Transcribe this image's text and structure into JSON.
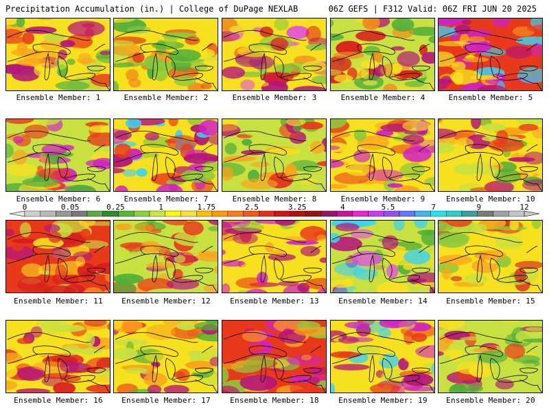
{
  "header": {
    "title_left": "Precipitation Accumulation (in.) | College of DuPage NEXLAB",
    "title_right": "06Z GEFS | F312 Valid: 06Z FRI JUN 20 2025"
  },
  "colorbar": {
    "tick_labels": [
      "0",
      "0.05",
      "0.25",
      "1",
      "1.75",
      "2.5",
      "3.25",
      "4",
      "5.5",
      "7",
      "9",
      "12"
    ],
    "colors": [
      "#d0d0d0",
      "#b8b8b8",
      "#989898",
      "#7a7a7a",
      "#5ea845",
      "#2f8a2b",
      "#55b632",
      "#8fd13b",
      "#c8e640",
      "#fdfd00",
      "#ffe033",
      "#ffc000",
      "#ff9a00",
      "#ff7a1a",
      "#f05a14",
      "#e03218",
      "#d21414",
      "#b40f0f",
      "#961414",
      "#9a1464",
      "#c81496",
      "#e628d2",
      "#c83cf0",
      "#9650f0",
      "#6478f0",
      "#3cb4f0",
      "#1ee6f0",
      "#28d2c8",
      "#3ca0a0",
      "#7a7a7a",
      "#a0a0a0",
      "#c4c4c4"
    ]
  },
  "members": [
    {
      "label": "Ensemble Member: 1",
      "palette": [
        "#f7e11e",
        "#fba21a",
        "#e83a1b",
        "#57b63c",
        "#c4d93a",
        "#b5157a"
      ]
    },
    {
      "label": "Ensemble Member: 2",
      "palette": [
        "#f7e11e",
        "#c8e040",
        "#4fae3a",
        "#f08a1a",
        "#e0401a",
        "#8cc83c"
      ]
    },
    {
      "label": "Ensemble Member: 3",
      "palette": [
        "#f7e11e",
        "#f07a1a",
        "#d81e1e",
        "#b5157a",
        "#e050e0",
        "#8cc83c"
      ]
    },
    {
      "label": "Ensemble Member: 4",
      "palette": [
        "#c8e040",
        "#f7e11e",
        "#4fae3a",
        "#f08a1a",
        "#d81e1e",
        "#b5157a"
      ]
    },
    {
      "label": "Ensemble Member: 5",
      "palette": [
        "#e83a1b",
        "#f7e11e",
        "#b5157a",
        "#d020c8",
        "#3cd2f0",
        "#fba21a"
      ]
    },
    {
      "label": "Ensemble Member: 6",
      "palette": [
        "#c8e040",
        "#f7e11e",
        "#4fae3a",
        "#e83a1b",
        "#d020c8",
        "#fba21a"
      ]
    },
    {
      "label": "Ensemble Member: 7",
      "palette": [
        "#f7e11e",
        "#b5157a",
        "#d020c8",
        "#3cd2f0",
        "#e83a1b",
        "#8cc83c"
      ]
    },
    {
      "label": "Ensemble Member: 8",
      "palette": [
        "#c8e040",
        "#4fae3a",
        "#f7e11e",
        "#e83a1b",
        "#b5157a",
        "#fba21a"
      ]
    },
    {
      "label": "Ensemble Member: 9",
      "palette": [
        "#f7e11e",
        "#e83a1b",
        "#b5157a",
        "#d020c8",
        "#8cc83c",
        "#fba21a"
      ]
    },
    {
      "label": "Ensemble Member: 10",
      "palette": [
        "#f7e11e",
        "#4fae3a",
        "#c8e040",
        "#b5157a",
        "#e83a1b",
        "#fba21a"
      ]
    },
    {
      "label": "Ensemble Member: 11",
      "palette": [
        "#e83a1b",
        "#f7e11e",
        "#fba21a",
        "#b5157a",
        "#d81e1e",
        "#c8e040"
      ]
    },
    {
      "label": "Ensemble Member: 12",
      "palette": [
        "#c8e040",
        "#4fae3a",
        "#f7e11e",
        "#e83a1b",
        "#fba21a",
        "#b5157a"
      ]
    },
    {
      "label": "Ensemble Member: 13",
      "palette": [
        "#f7e11e",
        "#e83a1b",
        "#b5157a",
        "#8cc83c",
        "#fba21a",
        "#d020c8"
      ]
    },
    {
      "label": "Ensemble Member: 14",
      "palette": [
        "#c8e040",
        "#4fae3a",
        "#3cd2f0",
        "#e050e0",
        "#b5157a",
        "#f7e11e"
      ]
    },
    {
      "label": "Ensemble Member: 15",
      "palette": [
        "#f7e11e",
        "#c8e040",
        "#e83a1b",
        "#fba21a",
        "#8cc83c",
        "#d81e1e"
      ]
    },
    {
      "label": "Ensemble Member: 16",
      "palette": [
        "#f7e11e",
        "#fba21a",
        "#e83a1b",
        "#c8e040",
        "#d81e1e",
        "#b5157a"
      ]
    },
    {
      "label": "Ensemble Member: 17",
      "palette": [
        "#f7e11e",
        "#fba21a",
        "#e83a1b",
        "#c8e040",
        "#b5157a",
        "#4fae3a"
      ]
    },
    {
      "label": "Ensemble Member: 18",
      "palette": [
        "#e83a1b",
        "#b5157a",
        "#f7e11e",
        "#d020c8",
        "#fba21a",
        "#8cc83c"
      ]
    },
    {
      "label": "Ensemble Member: 19",
      "palette": [
        "#f7e11e",
        "#e83a1b",
        "#b5157a",
        "#d020c8",
        "#3cd2f0",
        "#c8e040"
      ]
    },
    {
      "label": "Ensemble Member: 20",
      "palette": [
        "#c8e040",
        "#4fae3a",
        "#f7e11e",
        "#e83a1b",
        "#b5157a",
        "#fba21a"
      ]
    }
  ]
}
